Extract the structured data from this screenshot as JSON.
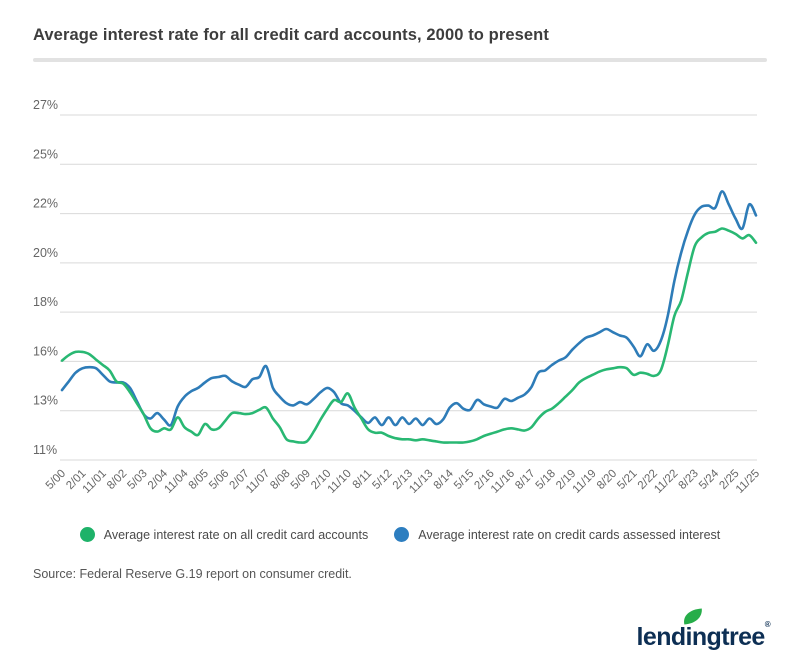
{
  "page": {
    "title": "Average interest rate for all credit card accounts, 2000 to present",
    "background": "#ffffff"
  },
  "chart_data": {
    "type": "line",
    "title": "Average interest rate for all credit card accounts, 2000 to present",
    "xlabel": "",
    "ylabel": "",
    "grid": "horizontal",
    "gridline_color": "#d9d9d9",
    "axis_label_color": "#666666",
    "ylim": [
      11.0,
      26.8
    ],
    "y_format": "percent",
    "y_tick_labels": [
      "27%",
      "25%",
      "22%",
      "20%",
      "18%",
      "16%",
      "13%",
      "11%"
    ],
    "x_tick_labels": [
      "5/00",
      "2/01",
      "11/01",
      "8/02",
      "5/03",
      "2/04",
      "11/04",
      "8/05",
      "5/06",
      "2/07",
      "11/07",
      "8/08",
      "5/09",
      "2/10",
      "11/10",
      "8/11",
      "5/12",
      "2/13",
      "11/13",
      "8/14",
      "5/15",
      "2/16",
      "11/16",
      "8/17",
      "5/18",
      "2/19",
      "11/19",
      "8/20",
      "5/21",
      "2/22",
      "11/22",
      "8/23",
      "5/24",
      "2/25",
      "11/25"
    ],
    "x_frequency": "quarterly",
    "points_per_tick": 3,
    "legend_position": "bottom",
    "series": [
      {
        "name": "Average interest rate on all credit card accounts",
        "color": "#29b873",
        "values": [
          15.55,
          15.8,
          15.95,
          15.95,
          15.85,
          15.6,
          15.35,
          15.1,
          14.6,
          14.5,
          14.1,
          13.6,
          13.1,
          12.45,
          12.3,
          12.45,
          12.4,
          12.95,
          12.5,
          12.3,
          12.15,
          12.65,
          12.4,
          12.45,
          12.8,
          13.15,
          13.15,
          13.1,
          13.15,
          13.3,
          13.4,
          12.9,
          12.5,
          11.95,
          11.85,
          11.8,
          11.85,
          12.3,
          12.85,
          13.35,
          13.75,
          13.65,
          14.05,
          13.4,
          12.9,
          12.4,
          12.25,
          12.25,
          12.1,
          12.0,
          11.95,
          11.95,
          11.9,
          11.95,
          11.9,
          11.85,
          11.8,
          11.8,
          11.8,
          11.8,
          11.85,
          11.95,
          12.1,
          12.2,
          12.3,
          12.4,
          12.45,
          12.4,
          12.35,
          12.5,
          12.9,
          13.2,
          13.35,
          13.6,
          13.9,
          14.2,
          14.55,
          14.75,
          14.9,
          15.05,
          15.15,
          15.2,
          15.25,
          15.2,
          14.9,
          15.0,
          14.95,
          14.85,
          15.1,
          16.2,
          17.6,
          18.3,
          19.6,
          20.8,
          21.2,
          21.4,
          21.45,
          21.6,
          21.5,
          21.35,
          21.15,
          21.3,
          20.95
        ]
      },
      {
        "name": "Average interest rate on credit cards assessed interest",
        "color": "#2e7cb8",
        "values": [
          14.2,
          14.6,
          15.0,
          15.2,
          15.25,
          15.2,
          14.9,
          14.6,
          14.55,
          14.55,
          14.3,
          13.7,
          13.1,
          12.9,
          13.15,
          12.85,
          12.6,
          13.45,
          13.9,
          14.15,
          14.3,
          14.55,
          14.75,
          14.8,
          14.85,
          14.6,
          14.45,
          14.35,
          14.7,
          14.8,
          15.3,
          14.3,
          13.9,
          13.6,
          13.5,
          13.65,
          13.55,
          13.8,
          14.1,
          14.3,
          14.1,
          13.6,
          13.5,
          13.25,
          12.95,
          12.7,
          12.95,
          12.6,
          12.95,
          12.6,
          12.95,
          12.65,
          12.9,
          12.6,
          12.9,
          12.65,
          12.85,
          13.4,
          13.6,
          13.35,
          13.3,
          13.75,
          13.55,
          13.45,
          13.4,
          13.8,
          13.7,
          13.85,
          14.0,
          14.35,
          15.0,
          15.1,
          15.35,
          15.55,
          15.7,
          16.05,
          16.35,
          16.6,
          16.7,
          16.85,
          17.0,
          16.85,
          16.7,
          16.6,
          16.2,
          15.75,
          16.3,
          16.0,
          16.45,
          17.55,
          19.2,
          20.5,
          21.5,
          22.25,
          22.6,
          22.65,
          22.55,
          23.3,
          22.7,
          22.05,
          21.6,
          22.7,
          22.2
        ]
      }
    ]
  },
  "legend": {
    "items": [
      {
        "label": "Average interest rate on all credit card accounts",
        "color": "#1eb269"
      },
      {
        "label": "Average interest rate on credit cards assessed interest",
        "color": "#2d7ec0"
      }
    ]
  },
  "source": {
    "text": "Source: Federal Reserve G.19 report on consumer credit."
  },
  "logo": {
    "text": "lendingtree",
    "mark": "®",
    "navy": "#0d2f54",
    "leaf_green": "#26ad49"
  }
}
